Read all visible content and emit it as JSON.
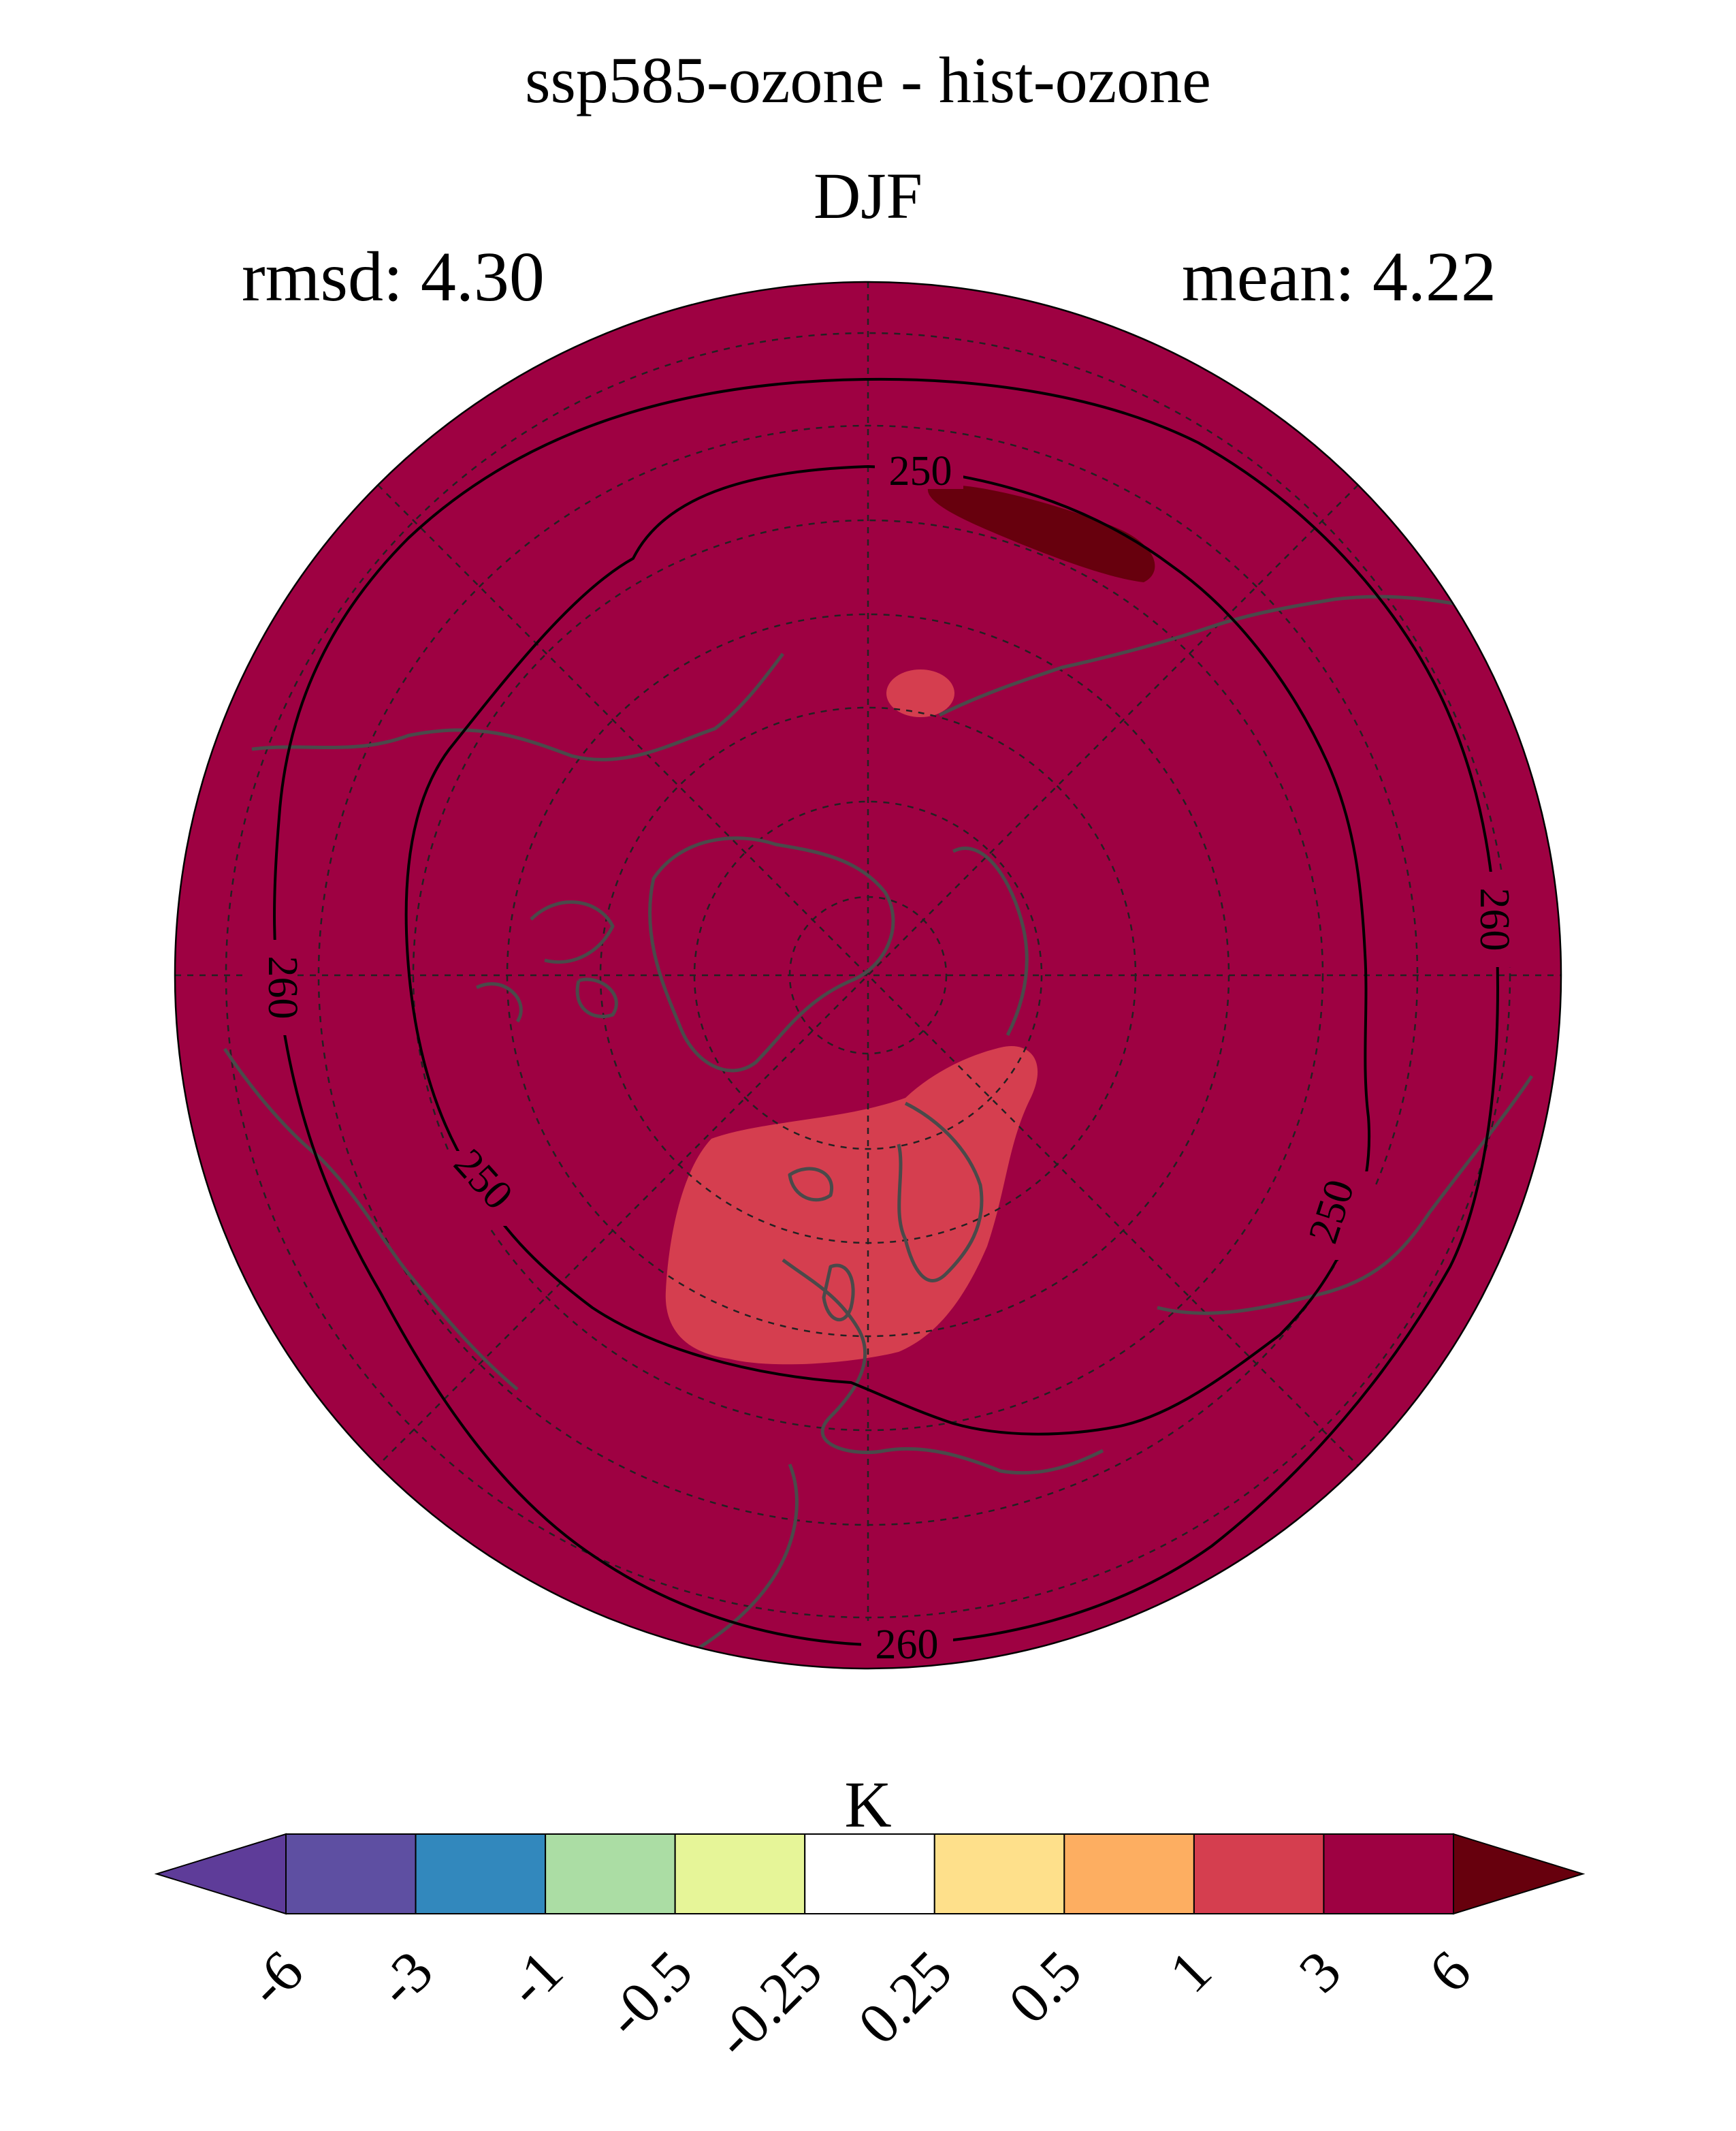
{
  "title": "ssp585-ozone - hist-ozone",
  "subtitle": "DJF",
  "stats": {
    "rmsd": "rmsd: 4.30",
    "mean": "mean: 4.22"
  },
  "chart_data": {
    "type": "map",
    "projection": "north-polar-stereographic",
    "season": "DJF",
    "field_fill_class": "3 to 6",
    "anomaly_regions": [
      {
        "name": "europe-scandinavia",
        "class": "1 to 3"
      },
      {
        "name": "bering-strait",
        "class": "1 to 3"
      },
      {
        "name": "east-siberia",
        "class": "> 6"
      }
    ],
    "contours": [
      {
        "name": "inner-contour",
        "level": 250,
        "labels": [
          "250",
          "250",
          "250"
        ]
      },
      {
        "name": "outer-contour",
        "level": 260,
        "labels": [
          "260",
          "260",
          "260"
        ]
      }
    ],
    "colorbar": {
      "unit": "K",
      "extend": "both",
      "bounds": [
        "-6",
        "-3",
        "-1",
        "-0.5",
        "-0.25",
        "0.25",
        "0.5",
        "1",
        "3",
        "6"
      ],
      "colors": [
        "#5e3c99",
        "#5e4fa2",
        "#3288bd",
        "#abdda4",
        "#e6f598",
        "#ffffff",
        "#fee08b",
        "#fdae61",
        "#d53e4f",
        "#9e0142",
        "#67000d"
      ]
    }
  }
}
